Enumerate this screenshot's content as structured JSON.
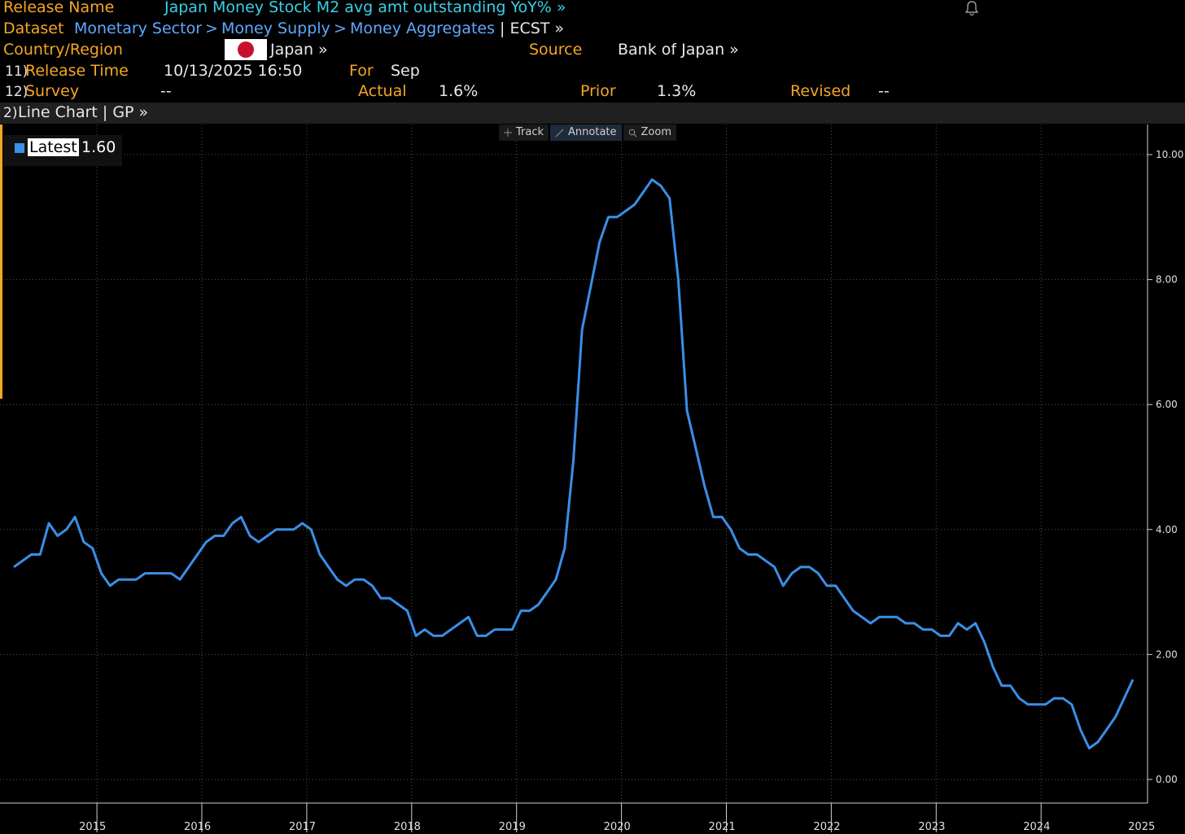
{
  "header": {
    "release_name_label": "Release Name",
    "release_name_value": "Japan Money Stock M2 avg amt outstanding YoY% »",
    "dataset_label": "Dataset",
    "dataset_path": [
      "Monetary Sector",
      "Money Supply",
      "Money Aggregates"
    ],
    "dataset_sep": ">",
    "dataset_code": "| ECST »",
    "country_label": "Country/Region",
    "country_value": "Japan »",
    "source_label": "Source",
    "source_value": "Bank of Japan »",
    "release_time_num": "11)",
    "release_time_label": "Release Time",
    "release_time_value": "10/13/2025 16:50",
    "for_label": "For",
    "for_value": "Sep",
    "survey_num": "12)",
    "survey_label": "Survey",
    "survey_value": "--",
    "actual_label": "Actual",
    "actual_value": "1.6%",
    "prior_label": "Prior",
    "prior_value": "1.3%",
    "revised_label": "Revised",
    "revised_value": "--"
  },
  "chartbar": {
    "num": "2)",
    "label": "Line Chart | GP »"
  },
  "toolbar": {
    "track": "Track",
    "annotate": "Annotate",
    "zoom": "Zoom"
  },
  "legend": {
    "label": "Latest",
    "value": "1.60",
    "color": "#3a8fe8"
  },
  "icons": {
    "bell": "bell-icon",
    "track": "crosshair-icon",
    "annotate": "pencil-icon",
    "zoom": "magnifier-icon"
  },
  "chart_data": {
    "type": "line",
    "title": "",
    "xlabel": "",
    "ylabel": "",
    "ylim": [
      0,
      10
    ],
    "yticks": [
      "0.00",
      "2.00",
      "4.00",
      "6.00",
      "8.00",
      "10.00"
    ],
    "xticks": [
      "2015",
      "2016",
      "2017",
      "2018",
      "2019",
      "2020",
      "2021",
      "2022",
      "2023",
      "2024",
      "2025"
    ],
    "grid": true,
    "legend_position": "top-left",
    "series": [
      {
        "name": "Latest",
        "color": "#3a8fe8",
        "points": [
          [
            "2014-09",
            3.4
          ],
          [
            "2014-10",
            3.5
          ],
          [
            "2014-11",
            3.6
          ],
          [
            "2014-12",
            3.6
          ],
          [
            "2015-01",
            4.1
          ],
          [
            "2015-02",
            3.9
          ],
          [
            "2015-03",
            4.0
          ],
          [
            "2015-04",
            4.2
          ],
          [
            "2015-05",
            3.8
          ],
          [
            "2015-06",
            3.7
          ],
          [
            "2015-07",
            3.3
          ],
          [
            "2015-08",
            3.1
          ],
          [
            "2015-09",
            3.2
          ],
          [
            "2015-10",
            3.2
          ],
          [
            "2015-11",
            3.2
          ],
          [
            "2015-12",
            3.3
          ],
          [
            "2016-01",
            3.3
          ],
          [
            "2016-02",
            3.3
          ],
          [
            "2016-03",
            3.3
          ],
          [
            "2016-04",
            3.2
          ],
          [
            "2016-05",
            3.4
          ],
          [
            "2016-06",
            3.6
          ],
          [
            "2016-07",
            3.8
          ],
          [
            "2016-08",
            3.9
          ],
          [
            "2016-09",
            3.9
          ],
          [
            "2016-10",
            4.1
          ],
          [
            "2016-11",
            4.2
          ],
          [
            "2016-12",
            3.9
          ],
          [
            "2017-01",
            3.8
          ],
          [
            "2017-02",
            3.9
          ],
          [
            "2017-03",
            4.0
          ],
          [
            "2017-04",
            4.0
          ],
          [
            "2017-05",
            4.0
          ],
          [
            "2017-06",
            4.1
          ],
          [
            "2017-07",
            4.0
          ],
          [
            "2017-08",
            3.6
          ],
          [
            "2017-09",
            3.4
          ],
          [
            "2017-10",
            3.2
          ],
          [
            "2017-11",
            3.1
          ],
          [
            "2017-12",
            3.2
          ],
          [
            "2018-01",
            3.2
          ],
          [
            "2018-02",
            3.1
          ],
          [
            "2018-03",
            2.9
          ],
          [
            "2018-04",
            2.9
          ],
          [
            "2018-05",
            2.8
          ],
          [
            "2018-06",
            2.7
          ],
          [
            "2018-07",
            2.3
          ],
          [
            "2018-08",
            2.4
          ],
          [
            "2018-09",
            2.3
          ],
          [
            "2018-10",
            2.3
          ],
          [
            "2018-11",
            2.4
          ],
          [
            "2018-12",
            2.5
          ],
          [
            "2019-01",
            2.6
          ],
          [
            "2019-02",
            2.3
          ],
          [
            "2019-03",
            2.3
          ],
          [
            "2019-04",
            2.4
          ],
          [
            "2019-05",
            2.4
          ],
          [
            "2019-06",
            2.4
          ],
          [
            "2019-07",
            2.7
          ],
          [
            "2019-08",
            2.7
          ],
          [
            "2019-09",
            2.8
          ],
          [
            "2019-10",
            3.0
          ],
          [
            "2019-11",
            3.2
          ],
          [
            "2019-12",
            3.7
          ],
          [
            "2020-01",
            5.1
          ],
          [
            "2020-02",
            7.2
          ],
          [
            "2020-03",
            7.9
          ],
          [
            "2020-04",
            8.6
          ],
          [
            "2020-05",
            9.0
          ],
          [
            "2020-06",
            9.0
          ],
          [
            "2020-07",
            9.1
          ],
          [
            "2020-08",
            9.2
          ],
          [
            "2020-09",
            9.4
          ],
          [
            "2020-10",
            9.6
          ],
          [
            "2020-11",
            9.5
          ],
          [
            "2020-12",
            9.3
          ],
          [
            "2021-01",
            8.0
          ],
          [
            "2021-02",
            5.9
          ],
          [
            "2021-03",
            5.3
          ],
          [
            "2021-04",
            4.7
          ],
          [
            "2021-05",
            4.2
          ],
          [
            "2021-06",
            4.2
          ],
          [
            "2021-07",
            4.0
          ],
          [
            "2021-08",
            3.7
          ],
          [
            "2021-09",
            3.6
          ],
          [
            "2021-10",
            3.6
          ],
          [
            "2021-11",
            3.5
          ],
          [
            "2021-12",
            3.4
          ],
          [
            "2022-01",
            3.1
          ],
          [
            "2022-02",
            3.3
          ],
          [
            "2022-03",
            3.4
          ],
          [
            "2022-04",
            3.4
          ],
          [
            "2022-05",
            3.3
          ],
          [
            "2022-06",
            3.1
          ],
          [
            "2022-07",
            3.1
          ],
          [
            "2022-08",
            2.9
          ],
          [
            "2022-09",
            2.7
          ],
          [
            "2022-10",
            2.6
          ],
          [
            "2022-11",
            2.5
          ],
          [
            "2022-12",
            2.6
          ],
          [
            "2023-01",
            2.6
          ],
          [
            "2023-02",
            2.6
          ],
          [
            "2023-03",
            2.5
          ],
          [
            "2023-04",
            2.5
          ],
          [
            "2023-05",
            2.4
          ],
          [
            "2023-06",
            2.4
          ],
          [
            "2023-07",
            2.3
          ],
          [
            "2023-08",
            2.3
          ],
          [
            "2023-09",
            2.5
          ],
          [
            "2023-10",
            2.4
          ],
          [
            "2023-11",
            2.5
          ],
          [
            "2023-12",
            2.2
          ],
          [
            "2024-01",
            1.8
          ],
          [
            "2024-02",
            1.5
          ],
          [
            "2024-03",
            1.5
          ],
          [
            "2024-04",
            1.3
          ],
          [
            "2024-05",
            1.2
          ],
          [
            "2024-06",
            1.2
          ],
          [
            "2024-07",
            1.2
          ],
          [
            "2024-08",
            1.3
          ],
          [
            "2024-09",
            1.3
          ],
          [
            "2024-10",
            1.2
          ],
          [
            "2024-11",
            0.8
          ],
          [
            "2024-12",
            0.5
          ],
          [
            "2025-01",
            0.6
          ],
          [
            "2025-02",
            0.8
          ],
          [
            "2025-03",
            1.0
          ],
          [
            "2025-04",
            1.3
          ],
          [
            "2025-05",
            1.6
          ]
        ]
      }
    ]
  }
}
